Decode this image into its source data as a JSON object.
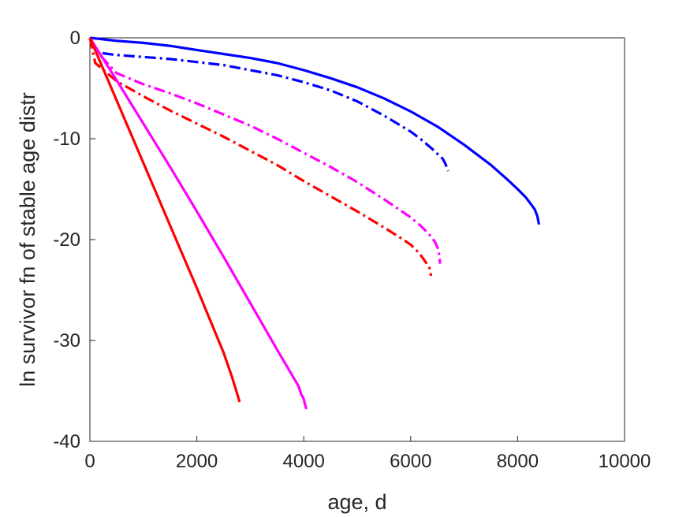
{
  "chart_data": {
    "type": "line",
    "xlabel": "age, d",
    "ylabel": "ln survivor fn of stable age distr",
    "xlim": [
      0,
      10000
    ],
    "ylim": [
      -40,
      0
    ],
    "xticks": [
      "0",
      "2000",
      "4000",
      "6000",
      "8000",
      "10000"
    ],
    "yticks": [
      "0",
      "-10",
      "-20",
      "-30",
      "-40"
    ],
    "grid": false,
    "legend": "none",
    "series": [
      {
        "color": "#0000ff",
        "style": "solid",
        "x": [
          0,
          500,
          1000,
          1500,
          2000,
          2500,
          3000,
          3500,
          4000,
          4500,
          5000,
          5500,
          6000,
          6500,
          7000,
          7500,
          7800,
          8000,
          8150,
          8250,
          8320,
          8370,
          8400
        ],
        "y": [
          0,
          -0.3,
          -0.5,
          -0.8,
          -1.2,
          -1.6,
          -2.0,
          -2.5,
          -3.2,
          -4.0,
          -4.9,
          -6.0,
          -7.3,
          -8.8,
          -10.6,
          -12.6,
          -14.0,
          -15.0,
          -15.8,
          -16.5,
          -17.0,
          -17.7,
          -18.5
        ]
      },
      {
        "color": "#0000ff",
        "style": "dashdot",
        "x": [
          0,
          100,
          200,
          500,
          1000,
          1500,
          2000,
          2500,
          3000,
          3500,
          4000,
          4500,
          5000,
          5500,
          6000,
          6200,
          6400,
          6500,
          6600,
          6650,
          6700
        ],
        "y": [
          0,
          -1.2,
          -1.5,
          -1.7,
          -1.9,
          -2.1,
          -2.4,
          -2.7,
          -3.2,
          -3.7,
          -4.4,
          -5.2,
          -6.3,
          -7.7,
          -9.3,
          -10.1,
          -11.0,
          -11.5,
          -12.0,
          -12.5,
          -13.2
        ]
      },
      {
        "color": "#ff00ff",
        "style": "dashdot",
        "x": [
          0,
          150,
          500,
          1000,
          1500,
          2000,
          2500,
          3000,
          3500,
          4000,
          4500,
          5000,
          5500,
          6000,
          6200,
          6350,
          6450,
          6520,
          6550
        ],
        "y": [
          0,
          -1.5,
          -3.5,
          -4.6,
          -5.5,
          -6.5,
          -7.6,
          -8.7,
          -10.0,
          -11.4,
          -12.8,
          -14.3,
          -16.0,
          -17.8,
          -18.7,
          -19.5,
          -20.2,
          -21.0,
          -22.4
        ]
      },
      {
        "color": "#ff0000",
        "style": "dashdot",
        "x": [
          0,
          100,
          500,
          1000,
          1500,
          2000,
          2500,
          3000,
          3500,
          4000,
          4500,
          5000,
          5500,
          5800,
          6000,
          6150,
          6250,
          6350,
          6380
        ],
        "y": [
          0,
          -2.5,
          -4.3,
          -5.8,
          -7.2,
          -8.5,
          -9.8,
          -11.2,
          -12.6,
          -14.2,
          -15.7,
          -17.2,
          -18.8,
          -19.8,
          -20.5,
          -21.3,
          -22.0,
          -22.8,
          -23.6
        ]
      },
      {
        "color": "#ff00ff",
        "style": "solid",
        "x": [
          0,
          500,
          1000,
          1500,
          2000,
          2500,
          3000,
          3500,
          3800,
          3900,
          3950,
          4000,
          4020,
          4050
        ],
        "y": [
          0,
          -4.2,
          -8.5,
          -12.8,
          -17.2,
          -21.7,
          -26.3,
          -30.9,
          -33.6,
          -34.5,
          -35.3,
          -35.8,
          -36.3,
          -36.8
        ]
      },
      {
        "color": "#ff0000",
        "style": "solid",
        "x": [
          0,
          500,
          1000,
          1500,
          2000,
          2500,
          2650,
          2750,
          2800
        ],
        "y": [
          0,
          -6.2,
          -12.4,
          -18.6,
          -24.8,
          -31.2,
          -33.5,
          -35.2,
          -36.1
        ]
      }
    ]
  }
}
